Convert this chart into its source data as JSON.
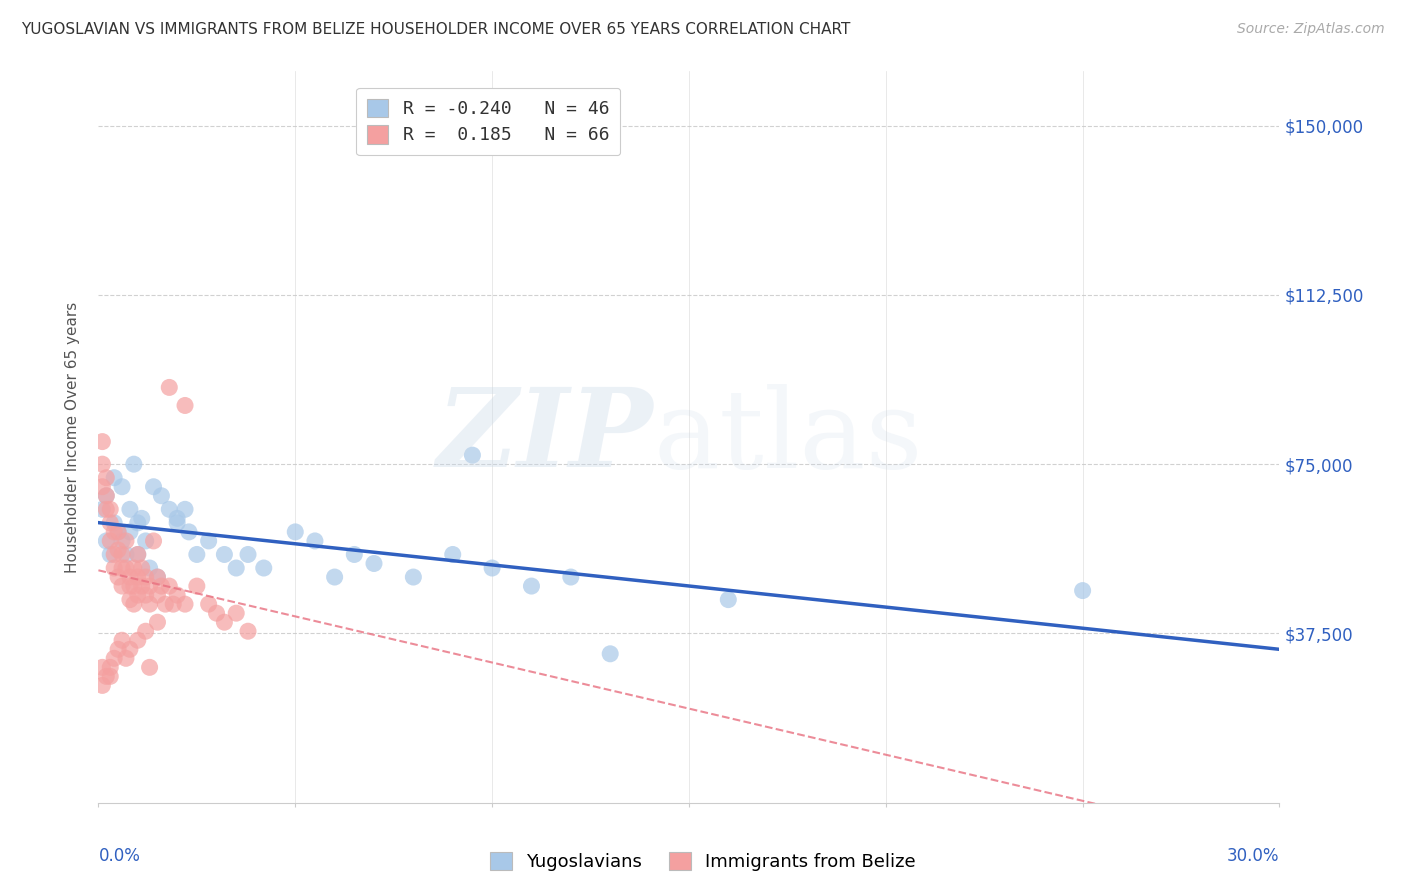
{
  "title": "YUGOSLAVIAN VS IMMIGRANTS FROM BELIZE HOUSEHOLDER INCOME OVER 65 YEARS CORRELATION CHART",
  "source": "Source: ZipAtlas.com",
  "ylabel": "Householder Income Over 65 years",
  "xmin": 0.0,
  "xmax": 0.3,
  "ymin": 0,
  "ymax": 162000,
  "legend_blue_R": "-0.240",
  "legend_blue_N": "46",
  "legend_pink_R": "0.185",
  "legend_pink_N": "66",
  "blue_color": "#a8c8e8",
  "pink_color": "#f4a0a0",
  "blue_line_color": "#3060c0",
  "pink_line_color": "#e87080",
  "ytick_vals": [
    37500,
    75000,
    112500,
    150000
  ],
  "yugo_x": [
    0.001,
    0.002,
    0.002,
    0.003,
    0.004,
    0.004,
    0.005,
    0.006,
    0.006,
    0.007,
    0.008,
    0.008,
    0.009,
    0.01,
    0.01,
    0.011,
    0.012,
    0.013,
    0.014,
    0.015,
    0.016,
    0.018,
    0.02,
    0.02,
    0.022,
    0.023,
    0.025,
    0.028,
    0.032,
    0.035,
    0.038,
    0.042,
    0.05,
    0.055,
    0.06,
    0.065,
    0.07,
    0.08,
    0.09,
    0.1,
    0.11,
    0.12,
    0.095,
    0.16,
    0.25,
    0.13
  ],
  "yugo_y": [
    65000,
    58000,
    68000,
    55000,
    72000,
    62000,
    60000,
    58000,
    70000,
    55000,
    65000,
    60000,
    75000,
    62000,
    55000,
    63000,
    58000,
    52000,
    70000,
    50000,
    68000,
    65000,
    63000,
    62000,
    65000,
    60000,
    55000,
    58000,
    55000,
    52000,
    55000,
    52000,
    60000,
    58000,
    50000,
    55000,
    53000,
    50000,
    55000,
    52000,
    48000,
    50000,
    77000,
    45000,
    47000,
    33000
  ],
  "belize_x": [
    0.001,
    0.001,
    0.001,
    0.002,
    0.002,
    0.002,
    0.003,
    0.003,
    0.003,
    0.004,
    0.004,
    0.004,
    0.005,
    0.005,
    0.005,
    0.006,
    0.006,
    0.006,
    0.007,
    0.007,
    0.008,
    0.008,
    0.008,
    0.009,
    0.009,
    0.009,
    0.01,
    0.01,
    0.01,
    0.011,
    0.011,
    0.012,
    0.012,
    0.013,
    0.013,
    0.014,
    0.015,
    0.015,
    0.016,
    0.017,
    0.018,
    0.019,
    0.02,
    0.022,
    0.025,
    0.028,
    0.03,
    0.032,
    0.035,
    0.038,
    0.018,
    0.022,
    0.015,
    0.012,
    0.01,
    0.008,
    0.006,
    0.005,
    0.004,
    0.003,
    0.002,
    0.001,
    0.001,
    0.003,
    0.007,
    0.013
  ],
  "belize_y": [
    80000,
    75000,
    70000,
    72000,
    68000,
    65000,
    65000,
    62000,
    58000,
    60000,
    55000,
    52000,
    60000,
    56000,
    50000,
    55000,
    52000,
    48000,
    58000,
    52000,
    50000,
    48000,
    45000,
    52000,
    48000,
    44000,
    55000,
    50000,
    46000,
    52000,
    48000,
    50000,
    46000,
    48000,
    44000,
    58000,
    50000,
    46000,
    48000,
    44000,
    48000,
    44000,
    46000,
    44000,
    48000,
    44000,
    42000,
    40000,
    42000,
    38000,
    92000,
    88000,
    40000,
    38000,
    36000,
    34000,
    36000,
    34000,
    32000,
    30000,
    28000,
    26000,
    30000,
    28000,
    32000,
    30000
  ]
}
